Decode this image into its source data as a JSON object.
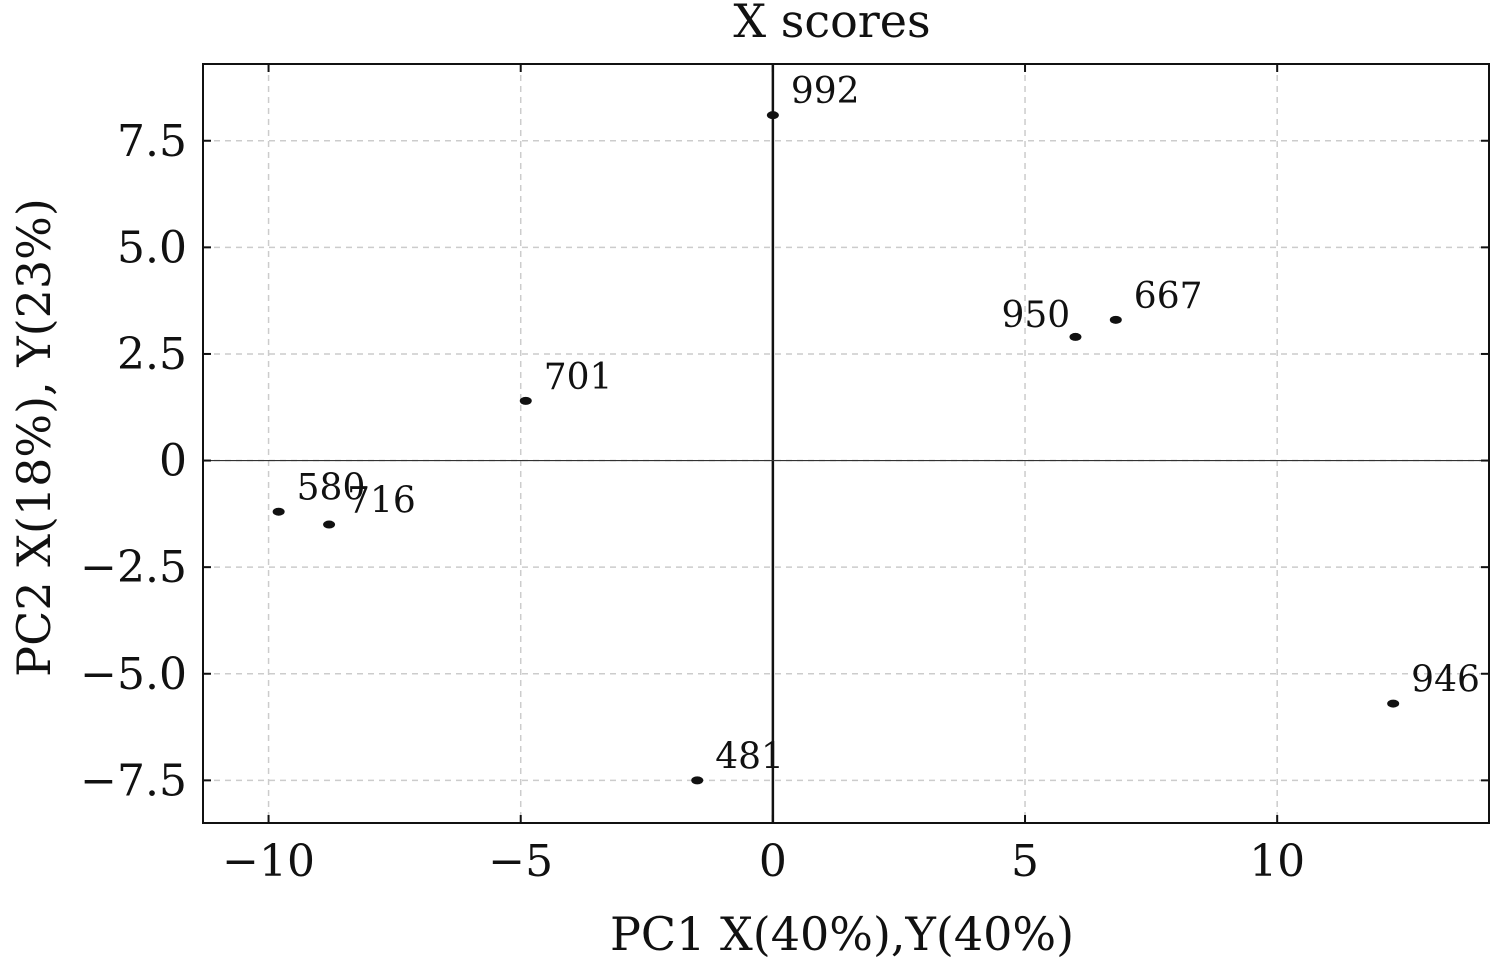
{
  "chart_data": {
    "type": "scatter",
    "title": "X scores",
    "xlabel": "PC1 X(40%),Y(40%)",
    "ylabel": "PC2 X(18%), Y(23%)",
    "xlim": [
      -11.3,
      14.2
    ],
    "ylim": [
      -8.5,
      9.3
    ],
    "x_ticks": [
      -10,
      -5,
      0,
      5,
      10
    ],
    "x_tick_labels": [
      "−10",
      "−5",
      "0",
      "5",
      "10"
    ],
    "y_ticks": [
      7.5,
      5.0,
      2.5,
      0,
      -2.5,
      -5.0,
      -7.5
    ],
    "y_tick_labels": [
      "7.5",
      "5.0",
      "2.5",
      "0",
      "−2.5",
      "−5.0",
      "−7.5"
    ],
    "grid": true,
    "reference_lines": {
      "x": 0,
      "y": 0
    },
    "marker_color": "#111111",
    "points": [
      {
        "label": "992",
        "x": 0.0,
        "y": 8.1
      },
      {
        "label": "950",
        "x": 6.0,
        "y": 2.9
      },
      {
        "label": "667",
        "x": 6.8,
        "y": 3.3
      },
      {
        "label": "701",
        "x": -4.9,
        "y": 1.4
      },
      {
        "label": "580",
        "x": -9.8,
        "y": -1.2
      },
      {
        "label": "716",
        "x": -8.8,
        "y": -1.5
      },
      {
        "label": "481",
        "x": -1.5,
        "y": -7.5
      },
      {
        "label": "946",
        "x": 12.3,
        "y": -5.7
      }
    ]
  }
}
